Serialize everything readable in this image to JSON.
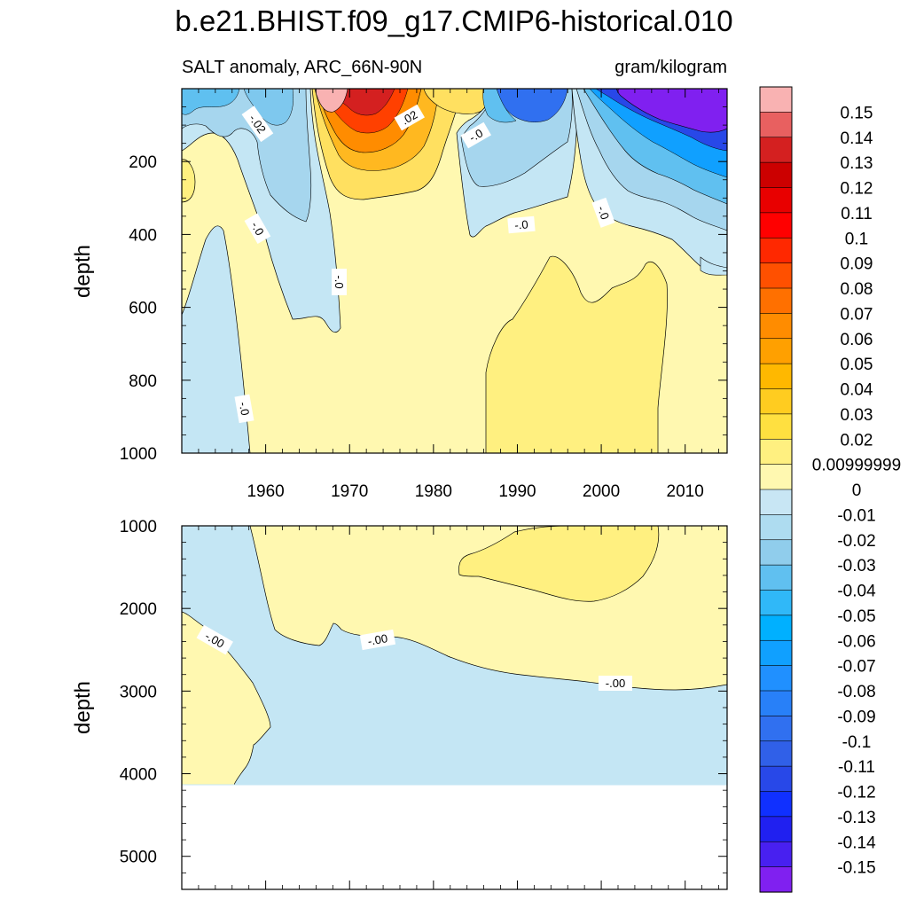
{
  "chart_data": {
    "type": "contour",
    "title": "b.e21.BHIST.f09_g17.CMIP6-historical.010",
    "subtitle_left": "SALT anomaly, ARC_66N-90N",
    "subtitle_right": "gram/kilogram",
    "xlabel": "",
    "x_ticks": [
      "1960",
      "1970",
      "1980",
      "1990",
      "2000",
      "2010"
    ],
    "xlim": [
      1950,
      2015
    ],
    "panels": [
      {
        "name": "upper",
        "ylabel": "depth",
        "ylim": [
          0,
          1000
        ],
        "y_ticks": [
          "200",
          "400",
          "600",
          "800",
          "1000"
        ],
        "contour_labels": [
          "-.02",
          ".02",
          "-.0",
          "-.0",
          "-.0",
          "-.0",
          "-.0",
          "-.0"
        ]
      },
      {
        "name": "lower",
        "ylabel": "depth",
        "ylim": [
          1000,
          5400
        ],
        "y_ticks": [
          "1000",
          "2000",
          "3000",
          "4000",
          "5000"
        ],
        "contour_labels": [
          "-.00",
          "-.00",
          "-.00"
        ]
      }
    ],
    "colorbar": {
      "labels": [
        "0.15",
        "0.14",
        "0.13",
        "0.12",
        "0.11",
        "0.1",
        "0.09",
        "0.08",
        "0.07",
        "0.06",
        "0.05",
        "0.04",
        "0.03",
        "0.02",
        "0.00999999",
        "0",
        "-0.01",
        "-0.02",
        "-0.03",
        "-0.04",
        "-0.05",
        "-0.06",
        "-0.07",
        "-0.08",
        "-0.09",
        "-0.1",
        "-0.11",
        "-0.12",
        "-0.13",
        "-0.14",
        "-0.15"
      ],
      "colors": [
        "#F9B2B2",
        "#E86060",
        "#D42020",
        "#CC0000",
        "#E80000",
        "#FF0000",
        "#FF2800",
        "#FF5000",
        "#FF7000",
        "#FF8C00",
        "#FFA000",
        "#FFB800",
        "#FFCC20",
        "#FFE040",
        "#FFF080",
        "#FFF8B0",
        "#C8E6F4",
        "#AEDCF0",
        "#90CDEC",
        "#60C0F0",
        "#30B8F8",
        "#00B0FF",
        "#10A0FF",
        "#2090FF",
        "#2880F8",
        "#3070F0",
        "#3060E8",
        "#2848E8",
        "#1030FF",
        "#2020F0",
        "#4820F0",
        "#8020F0"
      ]
    }
  },
  "colors": {
    "pale_yellow": "#FFF8B0",
    "yellow": "#FFF080",
    "pale_blue": "#C4E6F4",
    "light_blue": "#A6D6EE"
  }
}
